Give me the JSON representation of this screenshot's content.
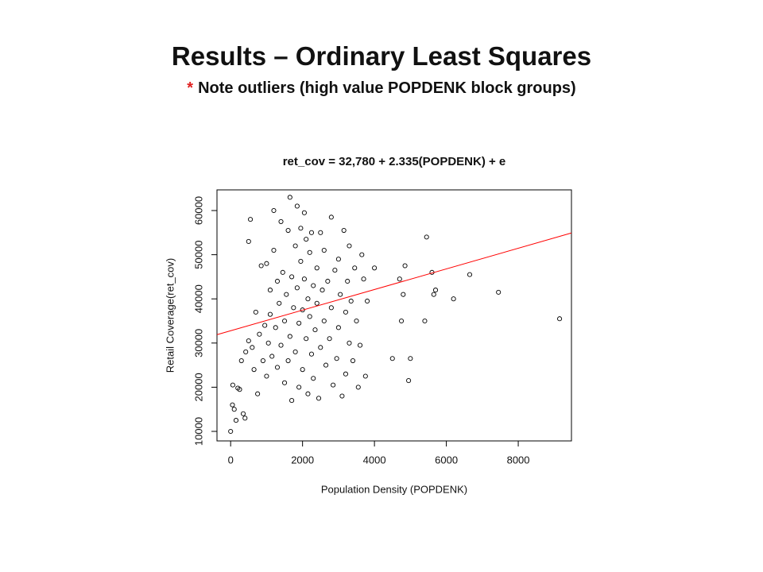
{
  "slide": {
    "title": "Results – Ordinary Least Squares",
    "note_marker": "*",
    "note": "Note outliers (high value POPDENK block groups)"
  },
  "chart_data": {
    "type": "scatter",
    "title": "ret_cov = 32,780 + 2.335(POPDENK) + e",
    "x_label": "Population Density (POPDENK)",
    "y_label": "Retail Coverage(ret_cov)",
    "color": "#000000",
    "x": [
      0,
      50,
      60,
      100,
      150,
      200,
      250,
      300,
      350,
      400,
      420,
      500,
      500,
      550,
      600,
      650,
      700,
      750,
      800,
      850,
      900,
      950,
      1000,
      1000,
      1050,
      1100,
      1100,
      1150,
      1200,
      1200,
      1250,
      1300,
      1300,
      1350,
      1400,
      1400,
      1450,
      1500,
      1500,
      1550,
      1600,
      1600,
      1650,
      1650,
      1700,
      1700,
      1750,
      1800,
      1800,
      1850,
      1850,
      1900,
      1900,
      1950,
      1950,
      2000,
      2000,
      2050,
      2050,
      2100,
      2100,
      2150,
      2150,
      2200,
      2200,
      2250,
      2250,
      2300,
      2300,
      2350,
      2400,
      2400,
      2450,
      2500,
      2500,
      2550,
      2600,
      2600,
      2650,
      2700,
      2750,
      2800,
      2800,
      2850,
      2900,
      2950,
      3000,
      3000,
      3050,
      3100,
      3150,
      3200,
      3200,
      3250,
      3300,
      3300,
      3350,
      3400,
      3450,
      3500,
      3550,
      3600,
      3650,
      3700,
      3750,
      3800,
      4000,
      4500,
      4700,
      4750,
      4800,
      4850,
      4950,
      5000,
      5400,
      5450,
      5600,
      5650,
      5700,
      6200,
      6650,
      7450,
      9150
    ],
    "values": [
      10000,
      16000,
      20500,
      15000,
      12500,
      19800,
      19500,
      26000,
      14000,
      13000,
      28000,
      30500,
      53000,
      58000,
      29000,
      24000,
      37000,
      18500,
      32000,
      47500,
      26000,
      34000,
      48000,
      22500,
      30000,
      42000,
      36500,
      27000,
      60000,
      51000,
      33500,
      24500,
      44000,
      39000,
      57500,
      29500,
      46000,
      35000,
      21000,
      41000,
      55500,
      26000,
      63000,
      31500,
      45000,
      17000,
      38000,
      52000,
      28000,
      61000,
      42500,
      34500,
      20000,
      56000,
      48500,
      37500,
      24000,
      59500,
      44500,
      31000,
      53500,
      40000,
      18500,
      36000,
      50500,
      27500,
      55000,
      43000,
      22000,
      33000,
      47000,
      39000,
      17500,
      55000,
      29000,
      42000,
      35000,
      51000,
      25000,
      44000,
      31000,
      58500,
      38000,
      20500,
      46500,
      26500,
      33500,
      49000,
      41000,
      18000,
      55500,
      37000,
      23000,
      44000,
      30000,
      52000,
      39500,
      26000,
      47000,
      35000,
      20000,
      29500,
      50000,
      44500,
      22500,
      39500,
      47000,
      26500,
      44500,
      35000,
      41000,
      47500,
      21500,
      26500,
      35000,
      54000,
      46000,
      41000,
      42000,
      40000,
      45500,
      41500,
      35500
    ],
    "regression": {
      "intercept": 32780,
      "slope": 2.335,
      "color": "#ff0000"
    },
    "xlim": [
      -380,
      9480
    ],
    "ylim": [
      7840,
      64680
    ],
    "xticks": [
      0,
      2000,
      4000,
      6000,
      8000
    ],
    "yticks": [
      10000,
      20000,
      30000,
      40000,
      50000,
      60000
    ],
    "grid": false
  }
}
